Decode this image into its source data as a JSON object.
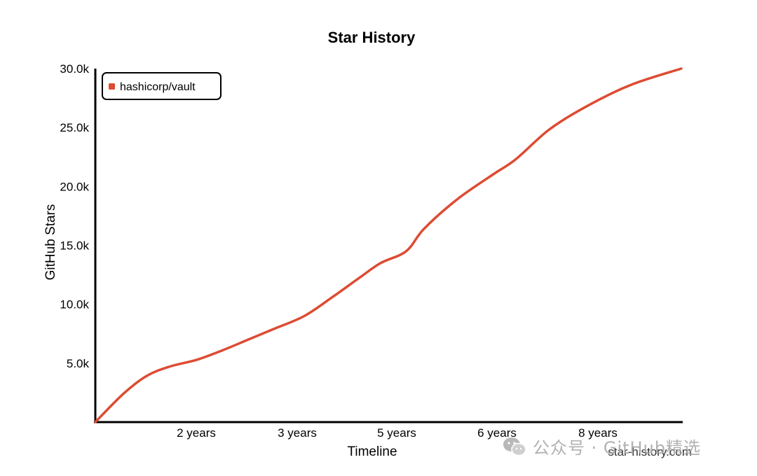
{
  "chart_data": {
    "type": "line",
    "title": "Star History",
    "xlabel": "Timeline",
    "ylabel": "GitHub Stars",
    "x_ticks": [
      "2 years",
      "3 years",
      "5 years",
      "6 years",
      "8 years"
    ],
    "y_ticks": [
      "5.0k",
      "10.0k",
      "15.0k",
      "20.0k",
      "25.0k",
      "30.0k"
    ],
    "ylim": [
      0,
      30000
    ],
    "legend_position": "top-left",
    "series": [
      {
        "name": "hashicorp/vault",
        "color": "#dd4b32",
        "points": [
          [
            0,
            0
          ],
          [
            0.55,
            2400
          ],
          [
            1.0,
            3900
          ],
          [
            1.45,
            4700
          ],
          [
            2.0,
            5300
          ],
          [
            2.5,
            6100
          ],
          [
            3.0,
            7000
          ],
          [
            3.5,
            7900
          ],
          [
            4.1,
            9000
          ],
          [
            4.65,
            10600
          ],
          [
            5.2,
            12300
          ],
          [
            5.6,
            13500
          ],
          [
            6.1,
            14500
          ],
          [
            6.45,
            16400
          ],
          [
            7.1,
            18900
          ],
          [
            7.8,
            21000
          ],
          [
            8.25,
            22300
          ],
          [
            8.9,
            24800
          ],
          [
            9.6,
            26700
          ],
          [
            10.5,
            28600
          ],
          [
            11.5,
            30000
          ]
        ]
      }
    ]
  },
  "watermark": {
    "source": "star-history.com",
    "channel": "公众号 · GitHub精选"
  }
}
